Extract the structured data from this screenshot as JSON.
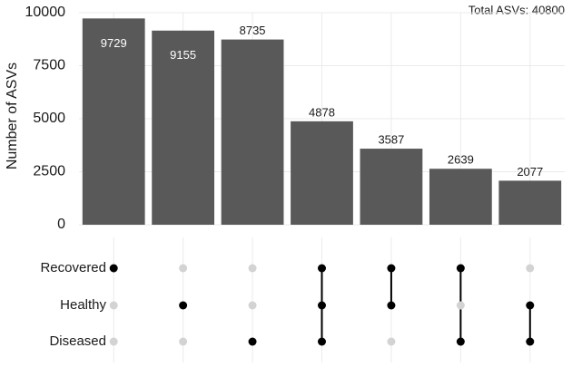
{
  "chart_data": {
    "type": "upset",
    "annotation": "Total ASVs: 40800",
    "ylabel": "Number of ASVs",
    "values": [
      9729,
      9155,
      8735,
      4878,
      3587,
      2639,
      2077
    ],
    "color": "#595959",
    "ylim": [
      0,
      10000
    ],
    "yticks": [
      0,
      2500,
      5000,
      7500,
      10000
    ],
    "grid": true,
    "sets": [
      "Recovered",
      "Healthy",
      "Diseased"
    ],
    "membership": [
      [
        true,
        false,
        false
      ],
      [
        false,
        true,
        false
      ],
      [
        false,
        false,
        true
      ],
      [
        true,
        true,
        true
      ],
      [
        true,
        true,
        false
      ],
      [
        true,
        false,
        true
      ],
      [
        false,
        true,
        true
      ]
    ]
  }
}
